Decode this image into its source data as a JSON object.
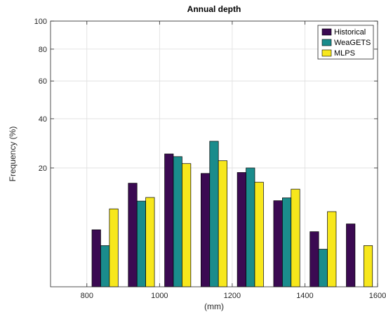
{
  "chart_data": {
    "type": "bar",
    "title": "Annual depth",
    "xlabel": "(mm)",
    "ylabel": "Frequency (%)",
    "xlim": [
      700,
      1600
    ],
    "ylim": [
      0,
      100
    ],
    "yscale": "sqrt",
    "grid": true,
    "legend_position": "top-right",
    "x_ticks": [
      800,
      1000,
      1200,
      1400,
      1600
    ],
    "y_ticks": [
      20,
      40,
      60,
      80,
      100
    ],
    "categories": [
      850,
      950,
      1050,
      1150,
      1250,
      1350,
      1450,
      1550
    ],
    "series": [
      {
        "name": "Historical",
        "color": "#3b0a52",
        "values": [
          4.6,
          15.2,
          25.0,
          18.2,
          18.5,
          10.5,
          4.3,
          5.6
        ]
      },
      {
        "name": "WeaGETS",
        "color": "#1a8c8c",
        "values": [
          2.4,
          10.4,
          24.0,
          30.0,
          20.0,
          11.2,
          2.0,
          0
        ]
      },
      {
        "name": "MLPS",
        "color": "#f7e71c",
        "values": [
          8.6,
          11.3,
          21.5,
          22.5,
          15.5,
          13.5,
          8.0,
          2.4
        ]
      }
    ]
  }
}
